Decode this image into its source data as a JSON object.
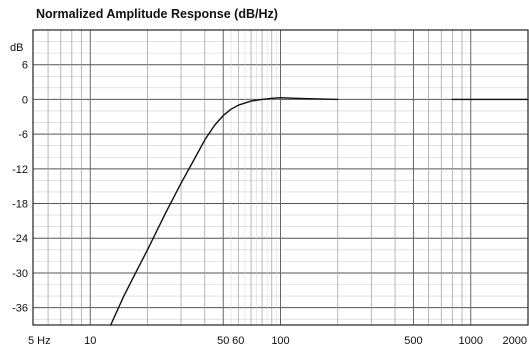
{
  "chart_data": {
    "type": "line",
    "title": "Normalized Amplitude Response (dB/Hz)",
    "ylabel": "dB",
    "xlabel": "",
    "x_scale": "log",
    "xlim": [
      5,
      2000
    ],
    "ylim": [
      -39,
      12
    ],
    "y_ticks": [
      6,
      0,
      -6,
      -12,
      -18,
      -24,
      -30,
      -36
    ],
    "y_tick_labels": [
      "6",
      "0",
      "-6",
      "-12",
      "-18",
      "-24",
      "-30",
      "-36"
    ],
    "x_tick_labels": [
      {
        "value": 5,
        "label": "5 Hz"
      },
      {
        "value": 10,
        "label": "10"
      },
      {
        "value": 50,
        "label": "50"
      },
      {
        "value": 60,
        "label": "60"
      },
      {
        "value": 100,
        "label": "100"
      },
      {
        "value": 500,
        "label": "500"
      },
      {
        "value": 1000,
        "label": "1000"
      },
      {
        "value": 2000,
        "label": "2000"
      }
    ],
    "grid": true,
    "series": [
      {
        "points": [
          [
            12.8,
            -39
          ],
          [
            15,
            -34
          ],
          [
            17,
            -30.5
          ],
          [
            20,
            -26
          ],
          [
            25,
            -19.5
          ],
          [
            30,
            -14.5
          ],
          [
            35,
            -10.5
          ],
          [
            40,
            -7
          ],
          [
            45,
            -4.5
          ],
          [
            50,
            -2.8
          ],
          [
            55,
            -1.7
          ],
          [
            60,
            -1.0
          ],
          [
            70,
            -0.3
          ],
          [
            80,
            0.0
          ],
          [
            90,
            0.2
          ],
          [
            100,
            0.3
          ],
          [
            120,
            0.2
          ],
          [
            150,
            0.1
          ],
          [
            200,
            0.0
          ]
        ]
      },
      {
        "points": [
          [
            800,
            0.0
          ],
          [
            2000,
            0.0
          ]
        ]
      }
    ]
  }
}
